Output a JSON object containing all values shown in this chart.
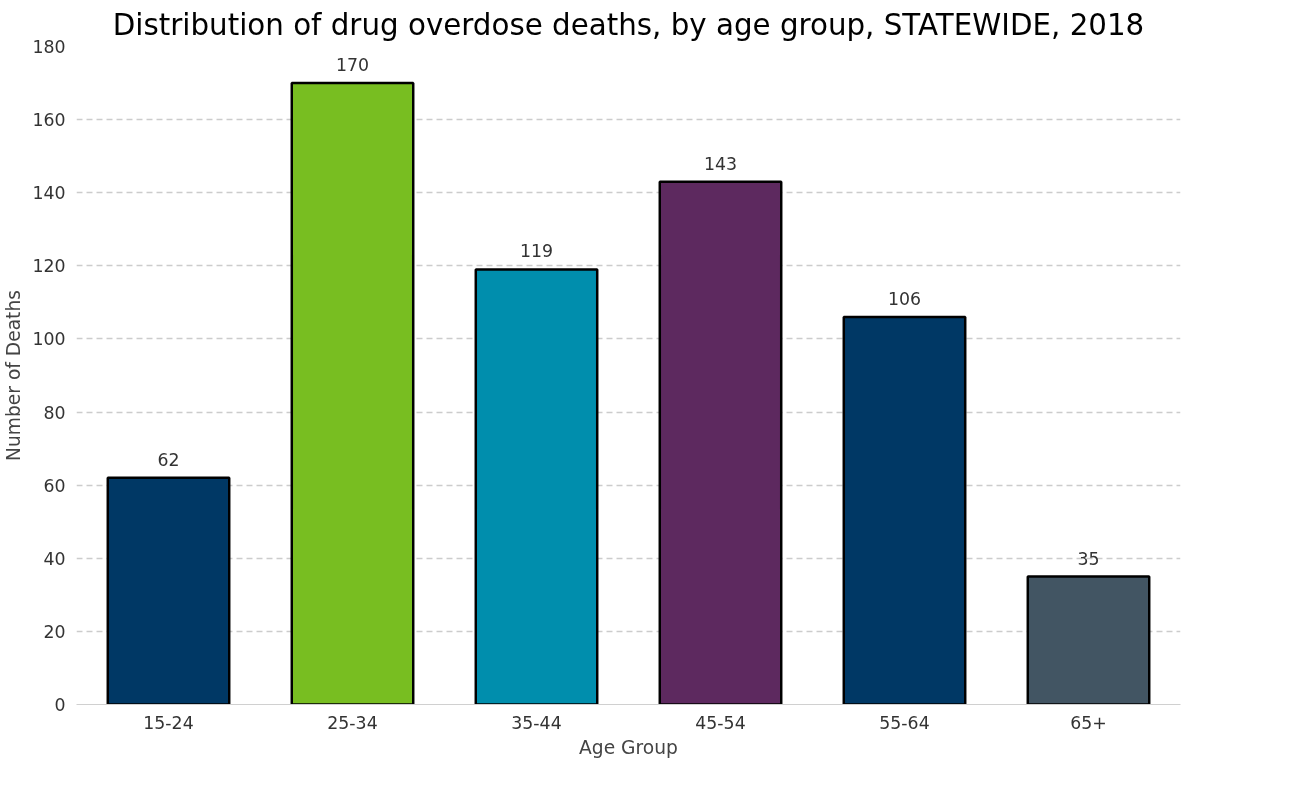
{
  "chart_data": {
    "type": "bar",
    "title": "Distribution of drug overdose deaths, by age group, STATEWIDE, 2018",
    "xlabel": "Age Group",
    "ylabel": "Number of Deaths",
    "categories": [
      "15-24",
      "25-34",
      "35-44",
      "45-54",
      "55-64",
      "65+"
    ],
    "values": [
      62,
      170,
      119,
      143,
      106,
      35
    ],
    "colors": [
      "#003865",
      "#78be21",
      "#008ead",
      "#5d295f",
      "#003865",
      "#425563"
    ],
    "ylim": [
      0,
      180
    ],
    "yticks": [
      0,
      20,
      40,
      60,
      80,
      100,
      120,
      140,
      160,
      180
    ],
    "grid": "y",
    "data_labels": true
  }
}
